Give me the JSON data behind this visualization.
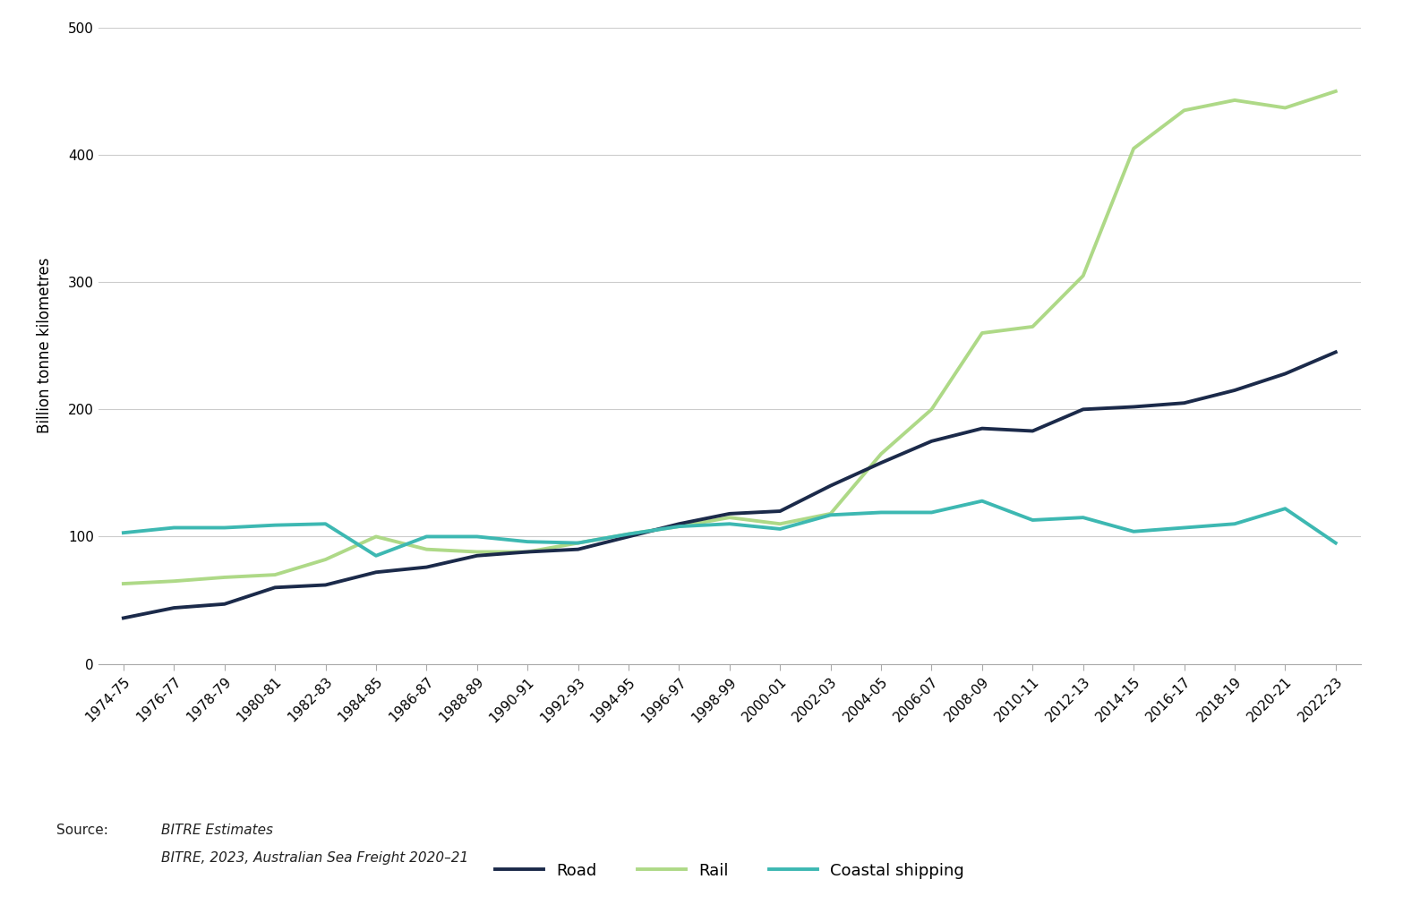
{
  "x_labels": [
    "1974-75",
    "1976-77",
    "1978-79",
    "1980-81",
    "1982-83",
    "1984-85",
    "1986-87",
    "1988-89",
    "1990-91",
    "1992-93",
    "1994-95",
    "1996-97",
    "1998-99",
    "2000-01",
    "2002-03",
    "2004-05",
    "2006-07",
    "2008-09",
    "2010-11",
    "2012-13",
    "2014-15",
    "2016-17",
    "2018-19",
    "2020-21",
    "2022-23"
  ],
  "road": [
    36,
    44,
    47,
    60,
    62,
    72,
    76,
    85,
    88,
    90,
    100,
    110,
    118,
    120,
    140,
    158,
    175,
    185,
    183,
    200,
    202,
    205,
    215,
    228,
    245
  ],
  "rail": [
    63,
    65,
    68,
    70,
    82,
    100,
    90,
    88,
    88,
    95,
    102,
    108,
    115,
    110,
    118,
    165,
    200,
    260,
    265,
    305,
    405,
    435,
    443,
    437,
    450
  ],
  "coastal_shipping": [
    103,
    107,
    107,
    109,
    110,
    85,
    100,
    100,
    96,
    95,
    102,
    108,
    110,
    106,
    117,
    119,
    119,
    128,
    113,
    115,
    104,
    107,
    110,
    122,
    95
  ],
  "road_color": "#1b2a4a",
  "rail_color": "#aed987",
  "coastal_color": "#3db8b2",
  "ylabel": "Billion tonne kilometres",
  "ylim": [
    0,
    500
  ],
  "yticks": [
    0,
    100,
    200,
    300,
    400,
    500
  ],
  "line_width": 2.8,
  "bg_color": "#ffffff",
  "grid_color": "#cccccc",
  "legend_labels": [
    "Road",
    "Rail",
    "Coastal shipping"
  ],
  "source_label": "Source:",
  "source_line1": "BITRE Estimates",
  "source_line2": "BITRE, 2023, Australian Sea Freight 2020–21"
}
